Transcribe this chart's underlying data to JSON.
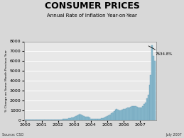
{
  "title": "CONSUMER PRICES",
  "subtitle": "Annual Rate of Inflation Year-on-Year",
  "ylabel": "% Change on Same Month Previous Year",
  "source": "Source: CSO",
  "date_label": "July 2007",
  "annotation": "7634.8%",
  "bar_color": "#8bbcce",
  "bar_edge_color": "#6a9eb8",
  "plot_bg_color": "#e8e8e8",
  "fig_bg_color": "#d8d8d8",
  "ylim": [
    0,
    8000
  ],
  "yticks": [
    0,
    1000,
    2000,
    3000,
    4000,
    5000,
    6000,
    7000,
    8000
  ],
  "xlabels": [
    "2000",
    "2001",
    "2002",
    "2003",
    "2004",
    "2005",
    "2006",
    "2007"
  ],
  "values": [
    56,
    55,
    53,
    50,
    48,
    46,
    44,
    46,
    48,
    52,
    56,
    58,
    55,
    54,
    52,
    50,
    48,
    47,
    46,
    47,
    49,
    51,
    54,
    56,
    58,
    62,
    68,
    75,
    85,
    100,
    120,
    145,
    170,
    200,
    240,
    290,
    350,
    430,
    510,
    580,
    600,
    560,
    490,
    420,
    370,
    330,
    300,
    280,
    120,
    100,
    90,
    85,
    90,
    100,
    115,
    135,
    160,
    200,
    250,
    310,
    380,
    460,
    550,
    660,
    780,
    900,
    1020,
    1100,
    1050,
    980,
    1000,
    1050,
    1100,
    1150,
    1200,
    1250,
    1300,
    1350,
    1400,
    1420,
    1400,
    1380,
    1350,
    1300,
    1280,
    1300,
    1400,
    1600,
    1800,
    2200,
    2600,
    3600,
    4600,
    7634,
    6500,
    6000
  ]
}
